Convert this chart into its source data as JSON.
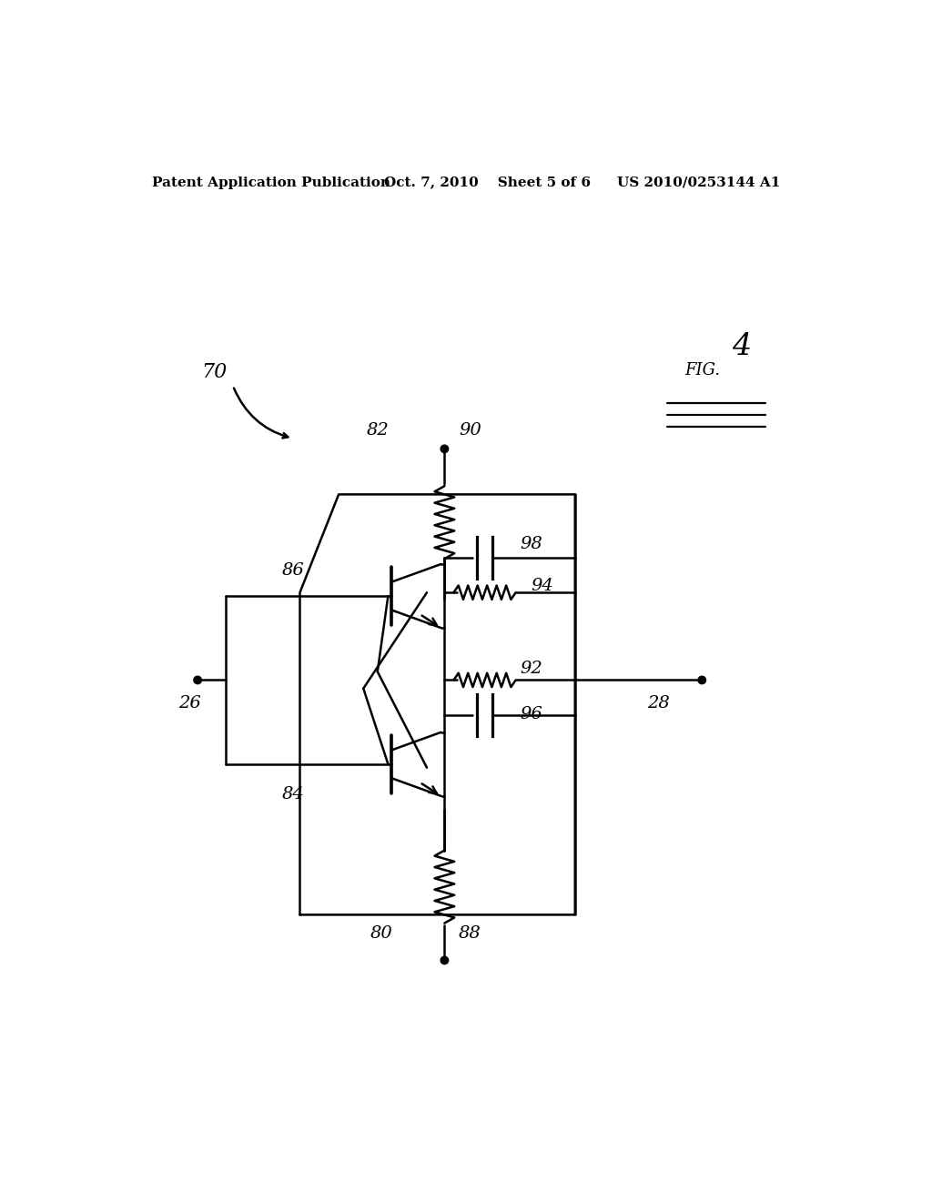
{
  "header_left": "Patent Application Publication",
  "header_mid": "Oct. 7, 2010    Sheet 5 of 6",
  "header_right": "US 2010/0253144 A1",
  "bg_color": "#ffffff",
  "line_color": "#000000"
}
